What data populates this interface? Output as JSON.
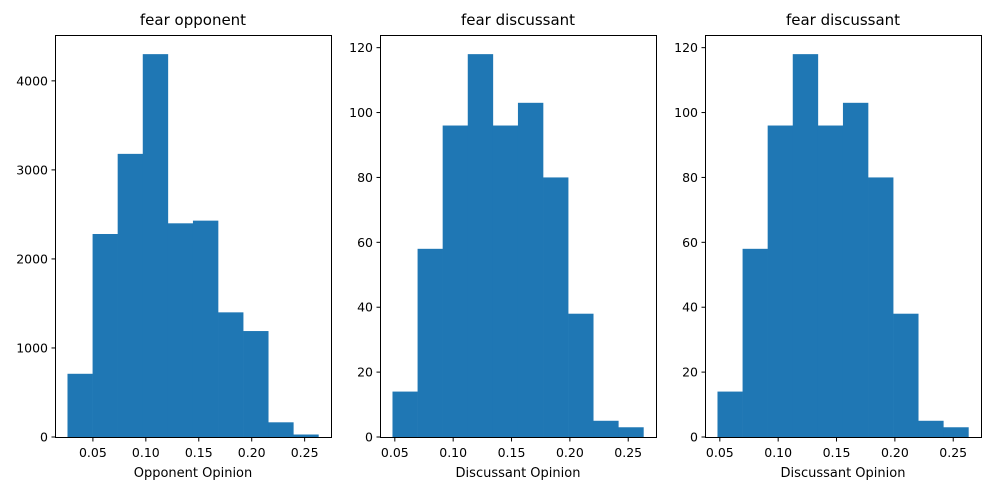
{
  "chart_data": [
    {
      "type": "bar",
      "title": "fear opponent",
      "xlabel": "Opponent Opinion",
      "ylabel": "",
      "bar_color": "#1f77b4",
      "bin_edges": [
        0.026,
        0.0497,
        0.0734,
        0.0971,
        0.1208,
        0.1445,
        0.1682,
        0.1919,
        0.2156,
        0.2393,
        0.263
      ],
      "values": [
        710,
        2280,
        3180,
        4300,
        2400,
        2430,
        1400,
        1190,
        165,
        28
      ],
      "xlim": [
        0.0142,
        0.2749
      ],
      "ylim": [
        0,
        4515
      ],
      "xticks": [
        0.05,
        0.1,
        0.15,
        0.2,
        0.25
      ],
      "xtick_labels": [
        "0.05",
        "0.10",
        "0.15",
        "0.20",
        "0.25"
      ],
      "yticks": [
        0,
        1000,
        2000,
        3000,
        4000
      ],
      "ytick_labels": [
        "0",
        "1000",
        "2000",
        "3000",
        "4000"
      ]
    },
    {
      "type": "bar",
      "title": "fear discussant",
      "xlabel": "Discussant Opinion",
      "ylabel": "",
      "bar_color": "#1f77b4",
      "bin_edges": [
        0.048,
        0.0695,
        0.091,
        0.1125,
        0.134,
        0.1555,
        0.177,
        0.1985,
        0.22,
        0.2415,
        0.263
      ],
      "values": [
        14,
        58,
        96,
        118,
        96,
        103,
        80,
        38,
        5,
        3
      ],
      "xlim": [
        0.0373,
        0.2738
      ],
      "ylim": [
        0,
        123.9
      ],
      "xticks": [
        0.05,
        0.1,
        0.15,
        0.2,
        0.25
      ],
      "xtick_labels": [
        "0.05",
        "0.10",
        "0.15",
        "0.20",
        "0.25"
      ],
      "yticks": [
        0,
        20,
        40,
        60,
        80,
        100,
        120
      ],
      "ytick_labels": [
        "0",
        "20",
        "40",
        "60",
        "80",
        "100",
        "120"
      ]
    },
    {
      "type": "bar",
      "title": "fear discussant",
      "xlabel": "Discussant Opinion",
      "ylabel": "",
      "bar_color": "#1f77b4",
      "bin_edges": [
        0.048,
        0.0695,
        0.091,
        0.1125,
        0.134,
        0.1555,
        0.177,
        0.1985,
        0.22,
        0.2415,
        0.263
      ],
      "values": [
        14,
        58,
        96,
        118,
        96,
        103,
        80,
        38,
        5,
        3
      ],
      "xlim": [
        0.0373,
        0.2738
      ],
      "ylim": [
        0,
        123.9
      ],
      "xticks": [
        0.05,
        0.1,
        0.15,
        0.2,
        0.25
      ],
      "xtick_labels": [
        "0.05",
        "0.10",
        "0.15",
        "0.20",
        "0.25"
      ],
      "yticks": [
        0,
        20,
        40,
        60,
        80,
        100,
        120
      ],
      "ytick_labels": [
        "0",
        "20",
        "40",
        "60",
        "80",
        "100",
        "120"
      ]
    }
  ]
}
